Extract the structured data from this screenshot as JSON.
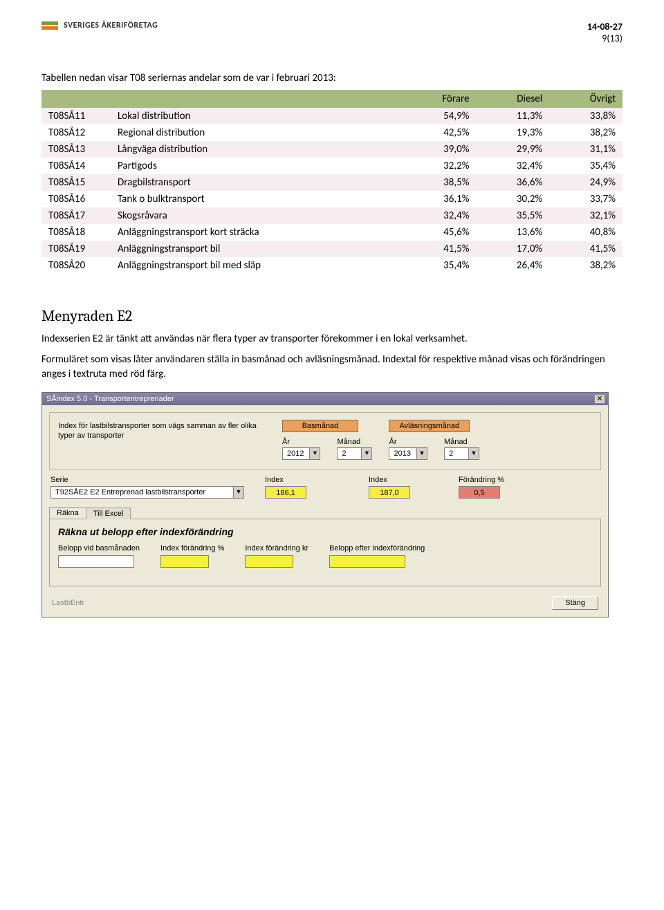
{
  "header": {
    "logo_text": "SVERIGES ÅKERIFÖRETAG",
    "date": "14-08-27",
    "page_of": "9(13)"
  },
  "intro_text": "Tabellen nedan visar T08 seriernas andelar som de var i februari 2013:",
  "table": {
    "columns": [
      "",
      "",
      "Förare",
      "Diesel",
      "Övrigt"
    ],
    "header_bg": "#a7bb7f",
    "odd_bg": "#f5edf0",
    "rows": [
      {
        "code": "T08SÅ11",
        "desc": "Lokal distribution",
        "v": [
          "54,9%",
          "11,3%",
          "33,8%"
        ]
      },
      {
        "code": "T08SÅ12",
        "desc": "Regional distribution",
        "v": [
          "42,5%",
          "19,3%",
          "38,2%"
        ]
      },
      {
        "code": "T08SÅ13",
        "desc": "Långväga distribution",
        "v": [
          "39,0%",
          "29,9%",
          "31,1%"
        ]
      },
      {
        "code": "T08SÅ14",
        "desc": "Partigods",
        "v": [
          "32,2%",
          "32,4%",
          "35,4%"
        ]
      },
      {
        "code": "T08SÅ15",
        "desc": "Dragbilstransport",
        "v": [
          "38,5%",
          "36,6%",
          "24,9%"
        ]
      },
      {
        "code": "T08SÅ16",
        "desc": "Tank o bulktransport",
        "v": [
          "36,1%",
          "30,2%",
          "33,7%"
        ]
      },
      {
        "code": "T08SÅ17",
        "desc": "Skogsråvara",
        "v": [
          "32,4%",
          "35,5%",
          "32,1%"
        ]
      },
      {
        "code": "T08SÅ18",
        "desc": "Anläggningstransport kort sträcka",
        "v": [
          "45,6%",
          "13,6%",
          "40,8%"
        ]
      },
      {
        "code": "T08SÅ19",
        "desc": "Anläggningstransport bil",
        "v": [
          "41,5%",
          "17,0%",
          "41,5%"
        ]
      },
      {
        "code": "T08SÅ20",
        "desc": "Anläggningstransport bil med släp",
        "v": [
          "35,4%",
          "26,4%",
          "38,2%"
        ]
      }
    ]
  },
  "section": {
    "heading": "Menyraden E2",
    "p1": "Indexserien E2 är tänkt att användas när flera typer av transporter förekommer i en lokal verksamhet.",
    "p2": "Formuläret som visas låter användaren ställa in basmånad och avläsningsmånad. Indextal för respektive månad visas och förändringen anges i textruta med röd färg."
  },
  "app": {
    "title": "SÅindex 5.0 - Transportentreprenader",
    "desc": "Index för lastbilstransporter som vägs samman av fler olika typer av transporter",
    "basmanad_label": "Basmånad",
    "avlasning_label": "Avläsningsmånad",
    "ar_label": "År",
    "manad_label": "Månad",
    "bas_ar": "2012",
    "bas_manad": "2",
    "avl_ar": "2013",
    "avl_manad": "2",
    "serie_label": "Serie",
    "serie_value": "T92SÅE2  E2 Entreprenad lastbilstransporter",
    "index_label": "Index",
    "index1": "186,1",
    "index2": "187,0",
    "forandring_label": "Förändring %",
    "forandring_value": "0,5",
    "tab_rakna": "Räkna",
    "tab_excel": "Till Excel",
    "tab_heading": "Räkna ut belopp efter indexförändring",
    "c1": "Belopp vid basmånaden",
    "c2": "Index förändring %",
    "c3": "Index förändring kr",
    "c4": "Belopp efter indexförändring",
    "status": "LastbEntr",
    "close_btn": "Stäng"
  }
}
